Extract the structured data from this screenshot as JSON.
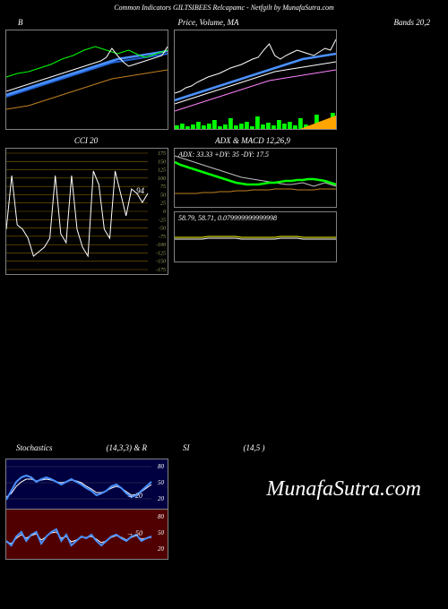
{
  "header": "Common Indicators GILTSIBEES Relcapamc - Netfgilt by MunafaSutra.com",
  "watermark": "MunafaSutra.com",
  "panels": {
    "bollinger": {
      "title_left": "B",
      "title_mid": "Price, Volume, MA",
      "title_right": "Bands 20,2",
      "width": 180,
      "height": 110,
      "series": {
        "upper": {
          "color": "#00ff00",
          "pts": [
            52,
            50,
            48,
            47,
            46,
            44,
            42,
            40,
            38,
            35,
            32,
            30,
            28,
            25,
            22,
            20,
            18,
            20,
            22,
            24,
            26,
            24,
            22,
            25,
            28,
            30,
            28,
            26,
            24,
            22
          ]
        },
        "price": {
          "color": "#ffffff",
          "pts": [
            68,
            66,
            64,
            62,
            60,
            58,
            56,
            54,
            52,
            50,
            48,
            46,
            44,
            42,
            40,
            38,
            36,
            34,
            30,
            20,
            28,
            35,
            40,
            38,
            36,
            34,
            32,
            30,
            28,
            18
          ]
        },
        "ma1": {
          "color": "#4a90ff",
          "width": 2.5,
          "pts": [
            72,
            70,
            68,
            66,
            64,
            62,
            60,
            58,
            56,
            54,
            52,
            50,
            48,
            46,
            44,
            42,
            40,
            38,
            36,
            34,
            32,
            31,
            30,
            29,
            28,
            27,
            26,
            25,
            24,
            23
          ]
        },
        "ma2": {
          "color": "#2060d0",
          "width": 2,
          "pts": [
            74,
            72,
            70,
            68,
            66,
            64,
            62,
            60,
            58,
            56,
            54,
            52,
            50,
            48,
            46,
            44,
            42,
            40,
            38,
            36,
            35,
            34,
            33,
            32,
            31,
            30,
            29,
            28,
            27,
            26
          ]
        },
        "lower": {
          "color": "#c08020",
          "pts": [
            88,
            87,
            86,
            85,
            84,
            82,
            80,
            78,
            76,
            74,
            72,
            70,
            68,
            66,
            64,
            62,
            60,
            58,
            56,
            54,
            53,
            52,
            51,
            50,
            49,
            48,
            47,
            46,
            45,
            44
          ]
        }
      }
    },
    "price_vol": {
      "width": 180,
      "height": 110,
      "series": {
        "price": {
          "color": "#ffffff",
          "pts": [
            70,
            68,
            64,
            62,
            58,
            55,
            52,
            50,
            48,
            45,
            42,
            40,
            38,
            35,
            32,
            30,
            22,
            15,
            28,
            32,
            28,
            25,
            22,
            24,
            26,
            28,
            24,
            20,
            22,
            10
          ]
        },
        "ma1": {
          "color": "#4a90ff",
          "width": 2.5,
          "pts": [
            78,
            76,
            74,
            72,
            70,
            68,
            66,
            64,
            62,
            60,
            58,
            56,
            54,
            52,
            50,
            48,
            46,
            44,
            42,
            40,
            38,
            36,
            34,
            32,
            31,
            30,
            29,
            28,
            27,
            26
          ]
        },
        "ma2": {
          "color": "#ffffff",
          "pts": [
            82,
            80,
            78,
            76,
            74,
            72,
            70,
            68,
            66,
            64,
            62,
            60,
            58,
            56,
            54,
            52,
            50,
            48,
            46,
            45,
            44,
            43,
            42,
            41,
            40,
            39,
            38,
            37,
            36,
            35
          ]
        },
        "ma3": {
          "color": "#ff80ff",
          "pts": [
            90,
            88,
            86,
            84,
            82,
            80,
            78,
            76,
            74,
            72,
            70,
            68,
            66,
            64,
            62,
            60,
            58,
            56,
            55,
            54,
            53,
            52,
            51,
            50,
            49,
            48,
            47,
            46,
            45,
            44
          ]
        }
      },
      "bars": {
        "color": "#00ff00",
        "vals": [
          4,
          6,
          3,
          5,
          8,
          4,
          6,
          10,
          3,
          5,
          12,
          4,
          6,
          8,
          3,
          14,
          5,
          7,
          4,
          10,
          6,
          8,
          4,
          12,
          5,
          3,
          16,
          4,
          6,
          18
        ]
      }
    },
    "cci": {
      "title": "CCI 20",
      "width": 180,
      "height": 140,
      "grid_color": "#806000",
      "ylabels": [
        175,
        150,
        125,
        100,
        75,
        50,
        25,
        0,
        -25,
        -50,
        -75,
        -100,
        -125,
        -150,
        -175
      ],
      "value_label": "94",
      "series": {
        "color": "#ffffff",
        "pts": [
          90,
          30,
          85,
          90,
          100,
          120,
          115,
          110,
          100,
          30,
          95,
          105,
          30,
          90,
          110,
          120,
          25,
          40,
          90,
          100,
          25,
          50,
          75,
          45,
          50,
          60,
          50
        ]
      }
    },
    "adx": {
      "title": "ADX & MACD 12,26,9",
      "width": 180,
      "height": 65,
      "label": "ADX: 33.33 +DY: 35 -DY: 17.5",
      "series": {
        "adx": {
          "color": "#00ff00",
          "width": 2.5,
          "pts": [
            15,
            18,
            20,
            22,
            24,
            26,
            28,
            30,
            32,
            34,
            36,
            38,
            39,
            40,
            40,
            40,
            39,
            38,
            38,
            37,
            36,
            36,
            35,
            35,
            34,
            34,
            35,
            36,
            38,
            40
          ]
        },
        "plus": {
          "color": "#c0c0c0",
          "pts": [
            8,
            10,
            12,
            14,
            16,
            18,
            20,
            22,
            24,
            26,
            28,
            30,
            32,
            33,
            34,
            35,
            36,
            37,
            38,
            39,
            40,
            40,
            39,
            38,
            40,
            42,
            40,
            38,
            40,
            42
          ]
        },
        "minus": {
          "color": "#c08020",
          "pts": [
            50,
            50,
            50,
            50,
            50,
            49,
            49,
            49,
            48,
            48,
            48,
            47,
            47,
            47,
            46,
            46,
            46,
            46,
            45,
            45,
            45,
            45,
            46,
            46,
            46,
            46,
            45,
            45,
            45,
            45
          ]
        }
      },
      "wedge_color": "#ffa500"
    },
    "macd": {
      "width": 180,
      "height": 55,
      "label": "58.79, 58.71, 0.079999999999998",
      "series": {
        "line1": {
          "color": "#ffff00",
          "pts": [
            28,
            28,
            28,
            28,
            28,
            28,
            27,
            27,
            27,
            27,
            27,
            27,
            28,
            28,
            28,
            28,
            28,
            28,
            28,
            27,
            27,
            27,
            27,
            28,
            28,
            28,
            28,
            28,
            28,
            28
          ]
        },
        "line2": {
          "color": "#ffffff",
          "pts": [
            30,
            30,
            30,
            30,
            30,
            30,
            29,
            29,
            29,
            29,
            29,
            29,
            30,
            30,
            30,
            30,
            30,
            30,
            30,
            29,
            29,
            29,
            29,
            30,
            30,
            30,
            30,
            30,
            30,
            30
          ]
        }
      }
    },
    "stoch": {
      "title_left": "Stochastics",
      "title_mid": "(14,3,3) & R",
      "title_si": "SI",
      "title_right": "(14,5                          )",
      "width": 180,
      "height": 55,
      "ylabels_top": [
        80,
        50,
        20
      ],
      "ylabels_bot": [
        80,
        50,
        20
      ],
      "top_bg": "#000040",
      "bot_bg": "#500000",
      "series_top": {
        "k": {
          "color": "#4a90ff",
          "width": 2,
          "pts": [
            45,
            35,
            25,
            20,
            18,
            20,
            25,
            22,
            20,
            22,
            25,
            28,
            25,
            22,
            25,
            28,
            32,
            35,
            40,
            38,
            35,
            30,
            28,
            32,
            38,
            42,
            40,
            35,
            30,
            25
          ]
        },
        "d": {
          "color": "#ffffff",
          "pts": [
            42,
            38,
            30,
            25,
            22,
            22,
            24,
            23,
            22,
            23,
            25,
            26,
            25,
            23,
            24,
            26,
            30,
            33,
            37,
            37,
            35,
            32,
            30,
            32,
            36,
            40,
            39,
            36,
            32,
            28
          ]
        }
      },
      "series_bot": {
        "k": {
          "color": "#4a90ff",
          "width": 2,
          "pts": [
            35,
            40,
            30,
            25,
            35,
            28,
            25,
            38,
            30,
            25,
            22,
            35,
            28,
            40,
            35,
            30,
            32,
            28,
            35,
            40,
            35,
            30,
            28,
            32,
            35,
            30,
            28,
            35,
            32,
            30
          ]
        },
        "d": {
          "color": "#ffffff",
          "pts": [
            36,
            38,
            32,
            28,
            32,
            29,
            27,
            34,
            30,
            26,
            25,
            32,
            30,
            36,
            34,
            31,
            31,
            30,
            33,
            37,
            35,
            31,
            29,
            31,
            34,
            31,
            29,
            33,
            32,
            31
          ]
        }
      },
      "annotation_top": "→ 20",
      "annotation_bot": "→ 50"
    }
  }
}
